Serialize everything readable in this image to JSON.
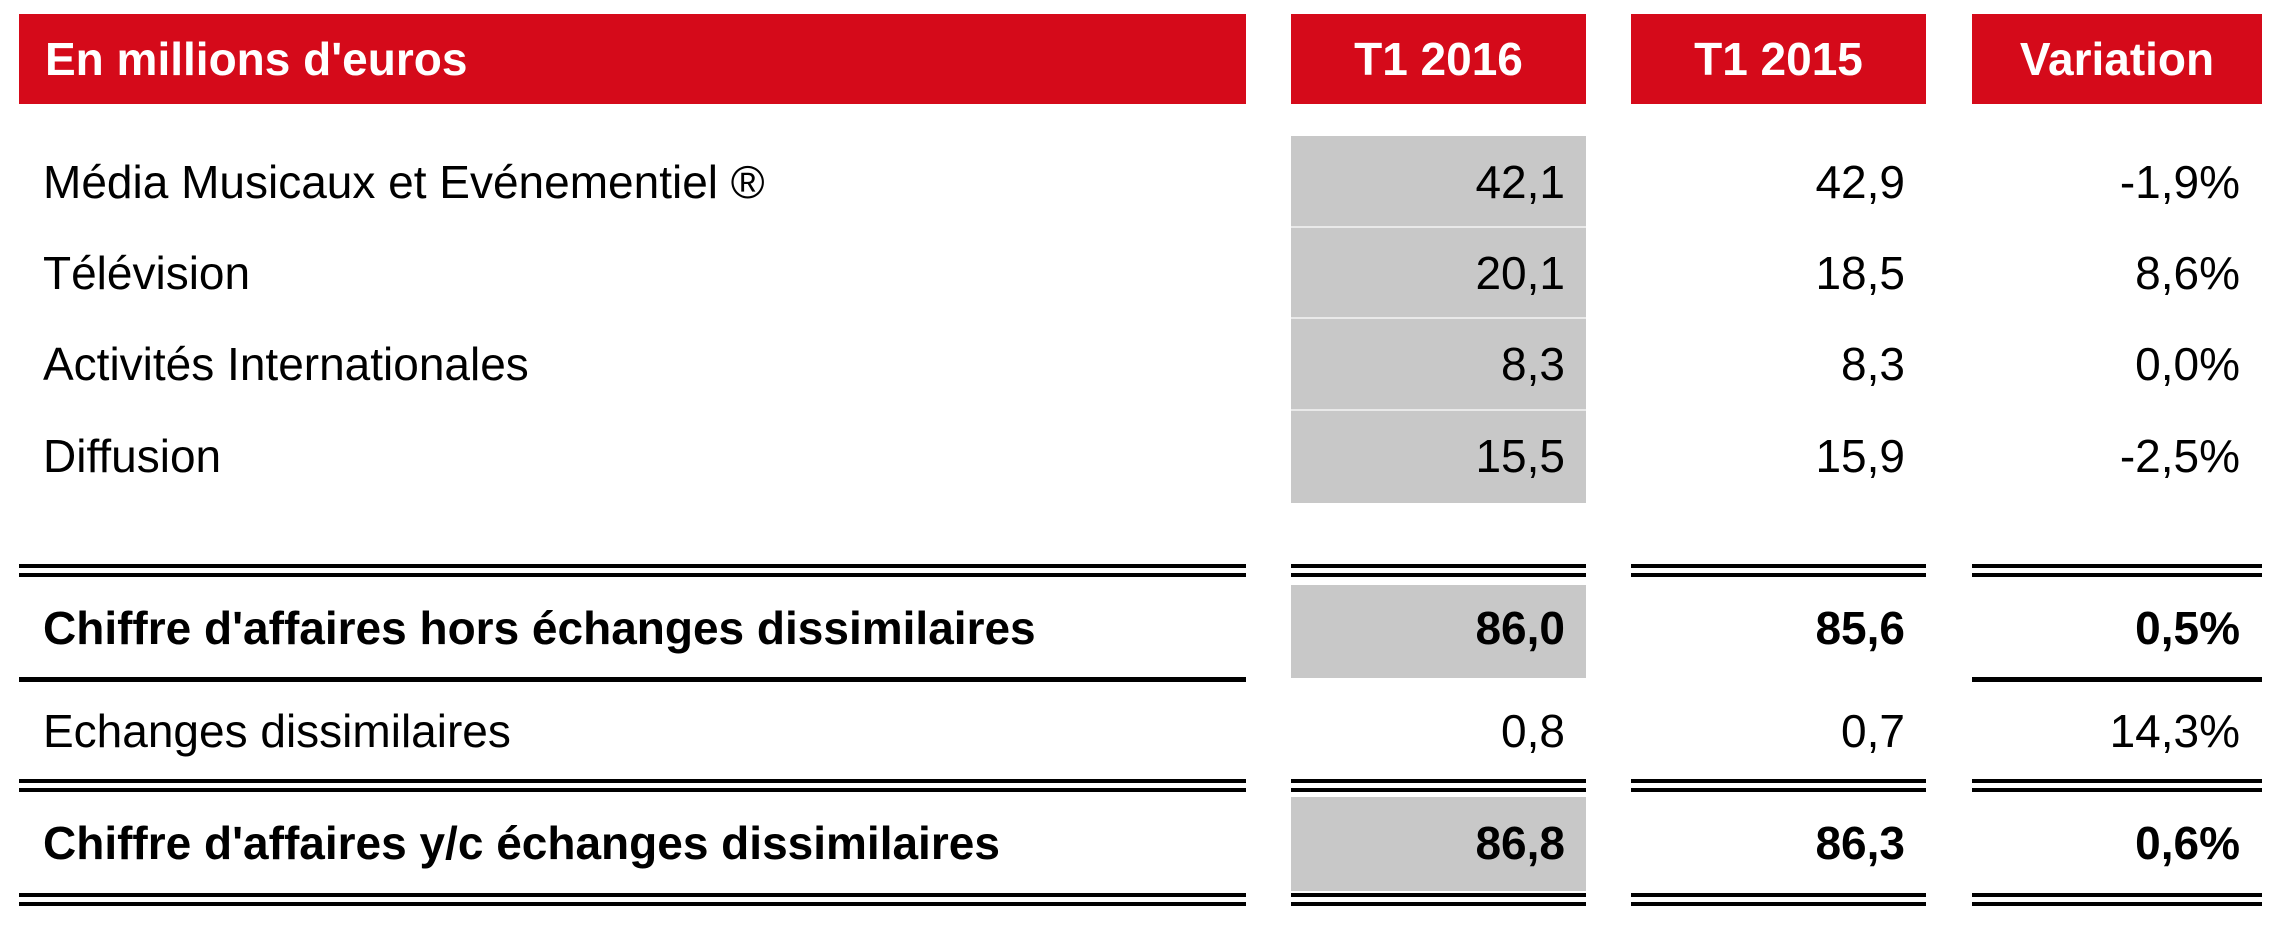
{
  "header": {
    "label": "En millions d'euros",
    "col1": "T1 2016",
    "col2": "T1 2015",
    "col3": "Variation"
  },
  "colors": {
    "header_red": "#d50a1a",
    "highlight_grey": "#c8c8c8"
  },
  "rows": [
    {
      "label": "Média Musicaux et Evénementiel ®",
      "t1_2016": "42,1",
      "t1_2015": "42,9",
      "variation": "-1,9%"
    },
    {
      "label": "Télévision",
      "t1_2016": "20,1",
      "t1_2015": "18,5",
      "variation": "8,6%"
    },
    {
      "label": "Activités Internationales",
      "t1_2016": "8,3",
      "t1_2015": "8,3",
      "variation": "0,0%"
    },
    {
      "label": "Diffusion",
      "t1_2016": "15,5",
      "t1_2015": "15,9",
      "variation": "-2,5%"
    }
  ],
  "subtotal": {
    "label": "Chiffre d'affaires hors échanges dissimilaires",
    "t1_2016": "86,0",
    "t1_2015": "85,6",
    "variation": "0,5%"
  },
  "exchanges": {
    "label": "Echanges dissimilaires",
    "t1_2016": "0,8",
    "t1_2015": "0,7",
    "variation": "14,3%"
  },
  "total": {
    "label": "Chiffre d'affaires y/c échanges dissimilaires",
    "t1_2016": "86,8",
    "t1_2015": "86,3",
    "variation": "0,6%"
  }
}
